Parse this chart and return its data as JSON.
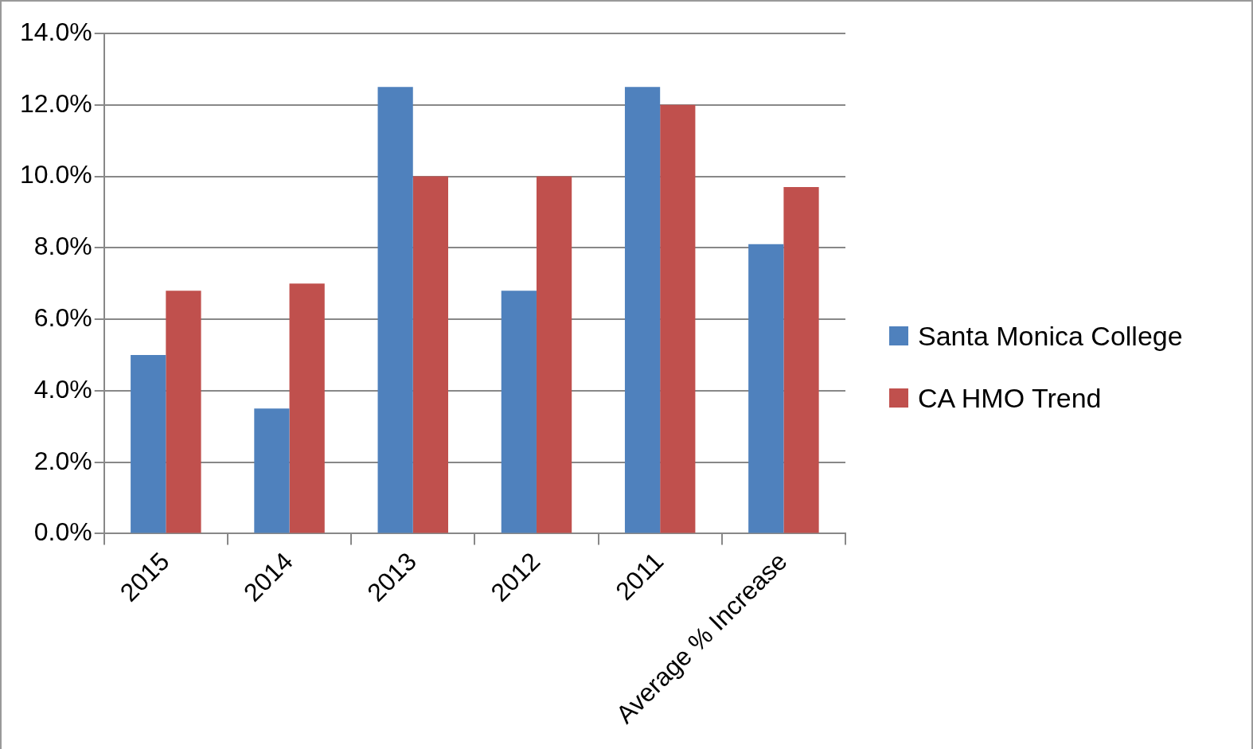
{
  "chart_data": {
    "type": "bar",
    "categories": [
      "2015",
      "2014",
      "2013",
      "2012",
      "2011",
      "Average % Increase"
    ],
    "series": [
      {
        "name": "Santa Monica College",
        "color": "#4f81bd",
        "values": [
          5.0,
          3.5,
          12.5,
          6.8,
          12.5,
          8.1
        ]
      },
      {
        "name": "CA HMO Trend",
        "color": "#c0504d",
        "values": [
          6.8,
          7.0,
          10.0,
          10.0,
          12.0,
          9.7
        ]
      }
    ],
    "ylim": [
      0,
      14
    ],
    "yticks": [
      {
        "value": 0,
        "label": "0.0%"
      },
      {
        "value": 2,
        "label": "2.0%"
      },
      {
        "value": 4,
        "label": "4.0%"
      },
      {
        "value": 6,
        "label": "6.0%"
      },
      {
        "value": 8,
        "label": "8.0%"
      },
      {
        "value": 10,
        "label": "10.0%"
      },
      {
        "value": 12,
        "label": "12.0%"
      },
      {
        "value": 14,
        "label": "14.0%"
      }
    ],
    "grid": "y",
    "legend": "right"
  }
}
